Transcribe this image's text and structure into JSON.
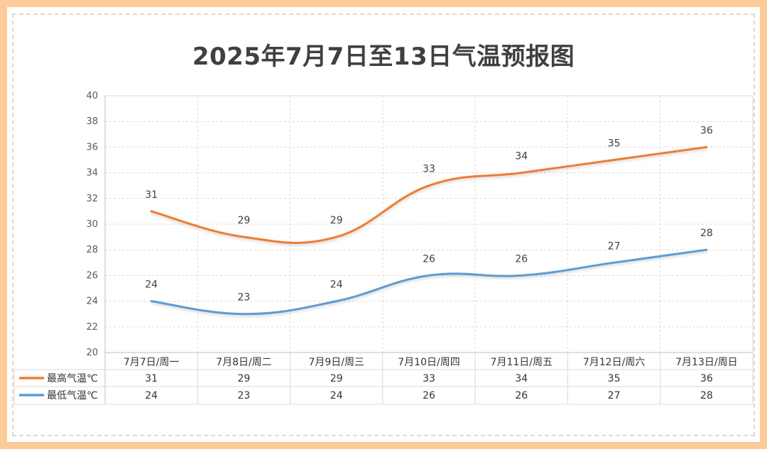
{
  "chart_data": {
    "type": "line",
    "title": "2025年7月7日至13日气温预报图",
    "categories": [
      "7月7日/周一",
      "7月8日/周二",
      "7月9日/周三",
      "7月10日/周四",
      "7月11日/周五",
      "7月12日/周六",
      "7月13日/周日"
    ],
    "series": [
      {
        "name": "最高气温℃",
        "values": [
          31,
          29,
          29,
          33,
          34,
          35,
          36
        ],
        "color": "#ed7d31"
      },
      {
        "name": "最低气温℃",
        "values": [
          24,
          23,
          24,
          26,
          26,
          27,
          28
        ],
        "color": "#5b9bd5"
      }
    ],
    "ylim": [
      20,
      40
    ],
    "y_ticks": [
      20,
      22,
      24,
      26,
      28,
      30,
      32,
      34,
      36,
      38,
      40
    ],
    "grid": true,
    "smooth": true,
    "data_table": true,
    "xlabel": "",
    "ylabel": ""
  }
}
